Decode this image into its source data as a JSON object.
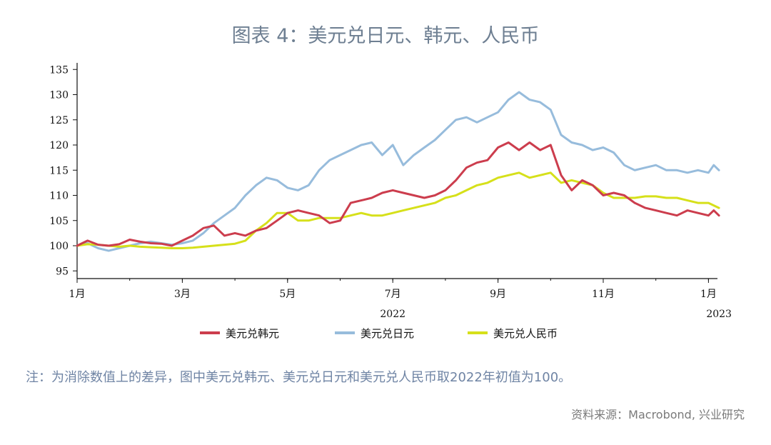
{
  "title": "图表 4：美元兑日元、韩元、人民币",
  "note": "注：为消除数值上的差异，图中美元兑韩元、美元兑日元和美元兑人民币取2022年初值为100。",
  "source": "资料来源：Macrobond, 兴业研究",
  "chart_data": {
    "type": "line",
    "title": "图表 4：美元兑日元、韩元、人民币",
    "ylim": [
      93,
      136
    ],
    "xlim": [
      0,
      12.2
    ],
    "yticks": [
      95,
      100,
      105,
      110,
      115,
      120,
      125,
      130,
      135
    ],
    "xticks": [
      {
        "label": "1月",
        "x": 0
      },
      {
        "label": "3月",
        "x": 2
      },
      {
        "label": "5月",
        "x": 4
      },
      {
        "label": "7月",
        "x": 6
      },
      {
        "label": "9月",
        "x": 8
      },
      {
        "label": "11月",
        "x": 10
      },
      {
        "label": "1月",
        "x": 12
      }
    ],
    "year_labels": [
      {
        "label": "2022",
        "x": 6
      },
      {
        "label": "2023",
        "x": 12.2
      }
    ],
    "grid": false,
    "legend_position": "bottom",
    "series": [
      {
        "name": "美元兑韩元",
        "color": "#cc3d4d",
        "x": [
          0,
          0.2,
          0.4,
          0.6,
          0.8,
          1.0,
          1.2,
          1.4,
          1.6,
          1.8,
          2.0,
          2.2,
          2.4,
          2.6,
          2.8,
          3.0,
          3.2,
          3.4,
          3.6,
          3.8,
          4.0,
          4.2,
          4.4,
          4.6,
          4.8,
          5.0,
          5.2,
          5.4,
          5.6,
          5.8,
          6.0,
          6.2,
          6.4,
          6.6,
          6.8,
          7.0,
          7.2,
          7.4,
          7.6,
          7.8,
          8.0,
          8.2,
          8.4,
          8.6,
          8.8,
          9.0,
          9.2,
          9.4,
          9.6,
          9.8,
          10.0,
          10.2,
          10.4,
          10.6,
          10.8,
          11.0,
          11.2,
          11.4,
          11.6,
          11.8,
          12.0,
          12.1,
          12.2
        ],
        "values": [
          100.0,
          101.0,
          100.2,
          100.0,
          100.3,
          101.2,
          100.8,
          100.5,
          100.4,
          100.0,
          101.0,
          102.0,
          103.5,
          104.0,
          102.0,
          102.5,
          102.0,
          103.0,
          103.5,
          105.0,
          106.5,
          107.0,
          106.5,
          106.0,
          104.5,
          105.0,
          108.5,
          109.0,
          109.5,
          110.5,
          111.0,
          110.5,
          110.0,
          109.5,
          110.0,
          111.0,
          113.0,
          115.5,
          116.5,
          117.0,
          119.5,
          120.5,
          119.0,
          120.5,
          119.0,
          120.0,
          114.0,
          111.0,
          113.0,
          112.0,
          110.0,
          110.5,
          110.0,
          108.5,
          107.5,
          107.0,
          106.5,
          106.0,
          107.0,
          106.5,
          106.0,
          107.0,
          106.0
        ]
      },
      {
        "name": "美元兑日元",
        "color": "#97bcdc",
        "x": [
          0,
          0.2,
          0.4,
          0.6,
          0.8,
          1.0,
          1.2,
          1.4,
          1.6,
          1.8,
          2.0,
          2.2,
          2.4,
          2.6,
          2.8,
          3.0,
          3.2,
          3.4,
          3.6,
          3.8,
          4.0,
          4.2,
          4.4,
          4.6,
          4.8,
          5.0,
          5.2,
          5.4,
          5.6,
          5.8,
          6.0,
          6.2,
          6.4,
          6.6,
          6.8,
          7.0,
          7.2,
          7.4,
          7.6,
          7.8,
          8.0,
          8.2,
          8.4,
          8.6,
          8.8,
          9.0,
          9.2,
          9.4,
          9.6,
          9.8,
          10.0,
          10.2,
          10.4,
          10.6,
          10.8,
          11.0,
          11.2,
          11.4,
          11.6,
          11.8,
          12.0,
          12.1,
          12.2
        ],
        "values": [
          100.0,
          100.5,
          99.5,
          99.0,
          99.5,
          100.0,
          100.5,
          100.8,
          100.5,
          100.2,
          100.5,
          101.0,
          102.5,
          104.5,
          106.0,
          107.5,
          110.0,
          112.0,
          113.5,
          113.0,
          111.5,
          111.0,
          112.0,
          115.0,
          117.0,
          118.0,
          119.0,
          120.0,
          120.5,
          118.0,
          120.0,
          116.0,
          118.0,
          119.5,
          121.0,
          123.0,
          125.0,
          125.5,
          124.5,
          125.5,
          126.5,
          129.0,
          130.5,
          129.0,
          128.5,
          127.0,
          122.0,
          120.5,
          120.0,
          119.0,
          119.5,
          118.5,
          116.0,
          115.0,
          115.5,
          116.0,
          115.0,
          115.0,
          114.5,
          115.0,
          114.5,
          116.0,
          115.0
        ]
      },
      {
        "name": "美元兑人民币",
        "color": "#d6e01a",
        "x": [
          0,
          0.2,
          0.4,
          0.6,
          0.8,
          1.0,
          1.2,
          1.4,
          1.6,
          1.8,
          2.0,
          2.2,
          2.4,
          2.6,
          2.8,
          3.0,
          3.2,
          3.4,
          3.6,
          3.8,
          4.0,
          4.2,
          4.4,
          4.6,
          4.8,
          5.0,
          5.2,
          5.4,
          5.6,
          5.8,
          6.0,
          6.2,
          6.4,
          6.6,
          6.8,
          7.0,
          7.2,
          7.4,
          7.6,
          7.8,
          8.0,
          8.2,
          8.4,
          8.6,
          8.8,
          9.0,
          9.2,
          9.4,
          9.6,
          9.8,
          10.0,
          10.2,
          10.4,
          10.6,
          10.8,
          11.0,
          11.2,
          11.4,
          11.6,
          11.8,
          12.0,
          12.1,
          12.2
        ],
        "values": [
          100.0,
          100.3,
          100.2,
          100.0,
          99.8,
          100.0,
          99.8,
          99.7,
          99.6,
          99.5,
          99.5,
          99.6,
          99.8,
          100.0,
          100.2,
          100.4,
          101.0,
          103.0,
          104.5,
          106.5,
          106.5,
          105.0,
          105.0,
          105.5,
          105.5,
          105.5,
          106.0,
          106.5,
          106.0,
          106.0,
          106.5,
          107.0,
          107.5,
          108.0,
          108.5,
          109.5,
          110.0,
          111.0,
          112.0,
          112.5,
          113.5,
          114.0,
          114.5,
          113.5,
          114.0,
          114.5,
          112.5,
          113.0,
          112.5,
          112.0,
          110.5,
          109.5,
          109.5,
          109.5,
          109.8,
          109.8,
          109.5,
          109.5,
          109.0,
          108.5,
          108.5,
          108.0,
          107.5
        ]
      }
    ]
  }
}
